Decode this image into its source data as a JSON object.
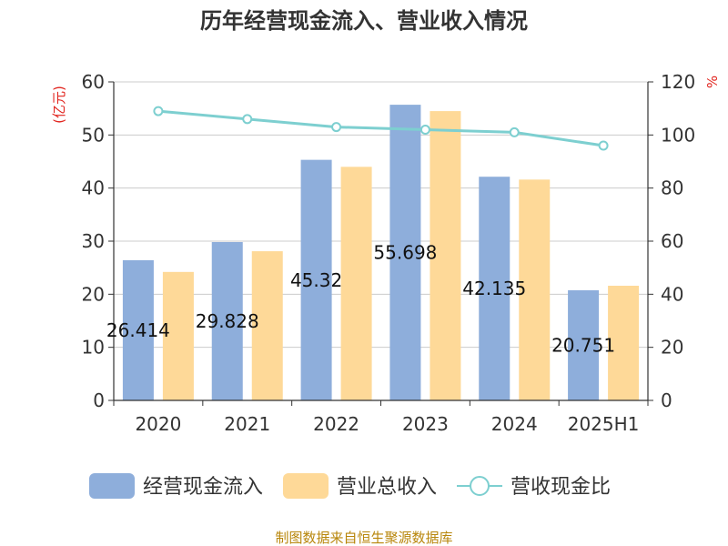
{
  "chart_data": {
    "type": "bar",
    "title": "历年经营现金流入、营业收入情况",
    "categories": [
      "2020",
      "2021",
      "2022",
      "2023",
      "2024",
      "2025H1"
    ],
    "series": [
      {
        "name": "经营现金流入",
        "kind": "bar",
        "axis": "left",
        "color": "#8eaedb",
        "values": [
          26.414,
          29.828,
          45.32,
          55.698,
          42.135,
          20.751
        ],
        "labels": [
          "26.414",
          "29.828",
          "45.32",
          "55.698",
          "42.135",
          "20.751"
        ]
      },
      {
        "name": "营业总收入",
        "kind": "bar",
        "axis": "left",
        "color": "#fed998",
        "values": [
          24.2,
          28.1,
          44.0,
          54.5,
          41.6,
          21.6
        ]
      },
      {
        "name": "营收现金比",
        "kind": "line",
        "axis": "right",
        "color": "#7dcfd0",
        "values": [
          109,
          106,
          103,
          102,
          101,
          96
        ]
      }
    ],
    "y_left": {
      "unit": "(亿元)",
      "min": 0,
      "max": 60,
      "ticks": [
        0,
        10,
        20,
        30,
        40,
        50,
        60
      ]
    },
    "y_right": {
      "unit": "%",
      "min": 0,
      "max": 120,
      "ticks": [
        0,
        20,
        40,
        60,
        80,
        100,
        120
      ]
    },
    "grid": true,
    "legend_position": "bottom"
  },
  "source": "制图数据来自恒生聚源数据库"
}
